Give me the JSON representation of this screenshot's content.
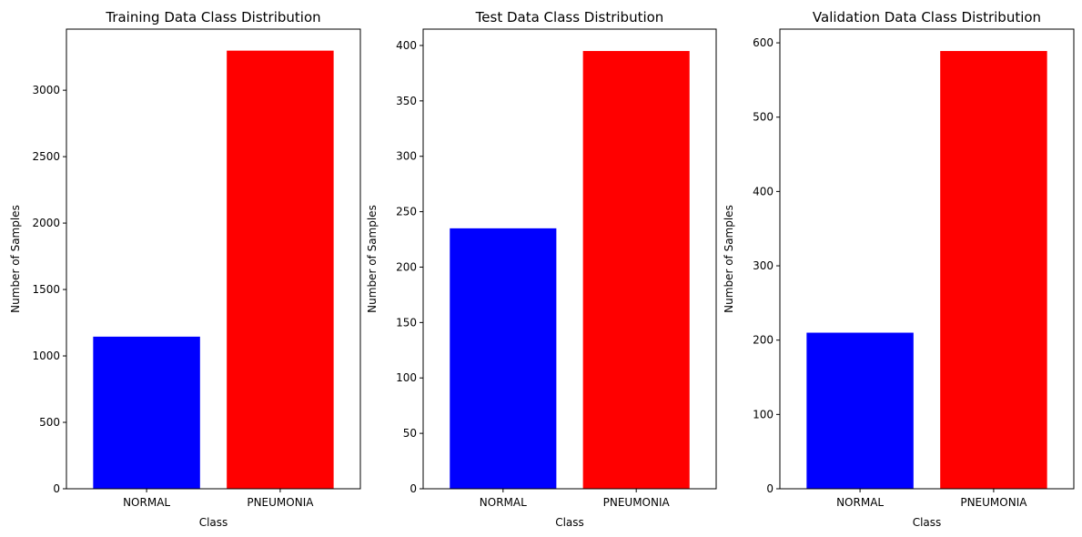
{
  "chart_data": [
    {
      "type": "bar",
      "title": "Training Data Class Distribution",
      "xlabel": "Class",
      "ylabel": "Number of Samples",
      "categories": [
        "NORMAL",
        "PNEUMONIA"
      ],
      "values": [
        1145,
        3298
      ],
      "colors": [
        "#0000ff",
        "#ff0000"
      ],
      "ylim": [
        0,
        3460
      ],
      "yticks": [
        0,
        500,
        1000,
        1500,
        2000,
        2500,
        3000
      ],
      "grid": false
    },
    {
      "type": "bar",
      "title": "Test Data Class Distribution",
      "xlabel": "Class",
      "ylabel": "Number of Samples",
      "categories": [
        "NORMAL",
        "PNEUMONIA"
      ],
      "values": [
        235,
        395
      ],
      "colors": [
        "#0000ff",
        "#ff0000"
      ],
      "ylim": [
        0,
        414.75
      ],
      "yticks": [
        0,
        50,
        100,
        150,
        200,
        250,
        300,
        350,
        400
      ],
      "grid": false
    },
    {
      "type": "bar",
      "title": "Validation Data Class Distribution",
      "xlabel": "Class",
      "ylabel": "Number of Samples",
      "categories": [
        "NORMAL",
        "PNEUMONIA"
      ],
      "values": [
        210,
        589
      ],
      "colors": [
        "#0000ff",
        "#ff0000"
      ],
      "ylim": [
        0,
        618.45
      ],
      "yticks": [
        0,
        100,
        200,
        300,
        400,
        500,
        600
      ],
      "grid": false
    }
  ]
}
